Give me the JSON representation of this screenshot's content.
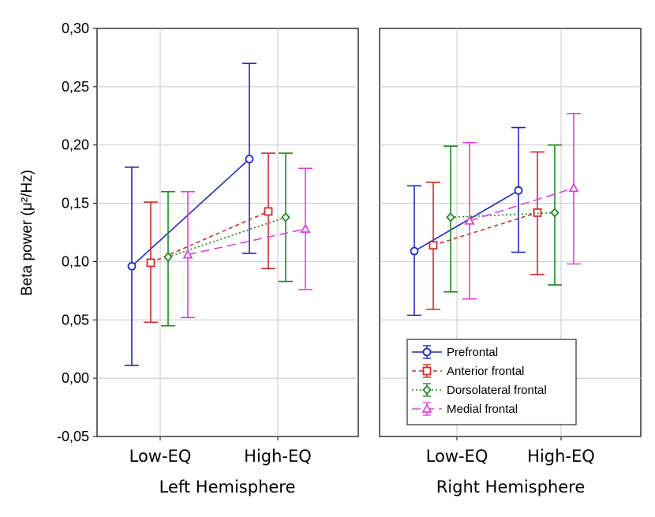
{
  "chart_data": {
    "type": "line",
    "ylabel": "Beta power (μ²/Hz)",
    "ylim": [
      -0.05,
      0.3
    ],
    "yticks": [
      -0.05,
      0.0,
      0.05,
      0.1,
      0.15,
      0.2,
      0.25,
      0.3
    ],
    "ytick_labels": [
      "-0,05",
      "0,00",
      "0,05",
      "0,10",
      "0,15",
      "0,20",
      "0,25",
      "0,30"
    ],
    "categories": [
      "Low-EQ",
      "High-EQ"
    ],
    "panels": [
      {
        "title": "Left Hemisphere",
        "series": [
          {
            "name": "Prefrontal",
            "mean": [
              0.096,
              0.188
            ],
            "upper": [
              0.181,
              0.27
            ],
            "lower": [
              0.011,
              0.107
            ]
          },
          {
            "name": "Anterior frontal",
            "mean": [
              0.099,
              0.143
            ],
            "upper": [
              0.151,
              0.193
            ],
            "lower": [
              0.048,
              0.094
            ]
          },
          {
            "name": "Dorsolateral frontal",
            "mean": [
              0.104,
              0.138
            ],
            "upper": [
              0.16,
              0.193
            ],
            "lower": [
              0.045,
              0.083
            ]
          },
          {
            "name": "Medial frontal",
            "mean": [
              0.106,
              0.128
            ],
            "upper": [
              0.16,
              0.18
            ],
            "lower": [
              0.052,
              0.076
            ]
          }
        ]
      },
      {
        "title": "Right Hemisphere",
        "series": [
          {
            "name": "Prefrontal",
            "mean": [
              0.109,
              0.161
            ],
            "upper": [
              0.165,
              0.215
            ],
            "lower": [
              0.054,
              0.108
            ]
          },
          {
            "name": "Anterior frontal",
            "mean": [
              0.114,
              0.142
            ],
            "upper": [
              0.168,
              0.194
            ],
            "lower": [
              0.059,
              0.089
            ]
          },
          {
            "name": "Dorsolateral frontal",
            "mean": [
              0.138,
              0.142
            ],
            "upper": [
              0.199,
              0.2
            ],
            "lower": [
              0.074,
              0.08
            ]
          },
          {
            "name": "Medial frontal",
            "mean": [
              0.135,
              0.163
            ],
            "upper": [
              0.202,
              0.227
            ],
            "lower": [
              0.068,
              0.098
            ]
          }
        ]
      }
    ],
    "legend": {
      "position": "bottom-right of right panel",
      "entries": [
        "Prefrontal",
        "Anterior frontal",
        "Dorsolateral frontal",
        "Medial frontal"
      ]
    },
    "colors": [
      "#1f28c8",
      "#d42a2a",
      "#1e8a1e",
      "#e040e0"
    ],
    "markers": [
      "circle",
      "square",
      "diamond",
      "triangle"
    ],
    "line_styles": [
      "solid",
      "dotted-short",
      "dotted",
      "dashed"
    ]
  }
}
